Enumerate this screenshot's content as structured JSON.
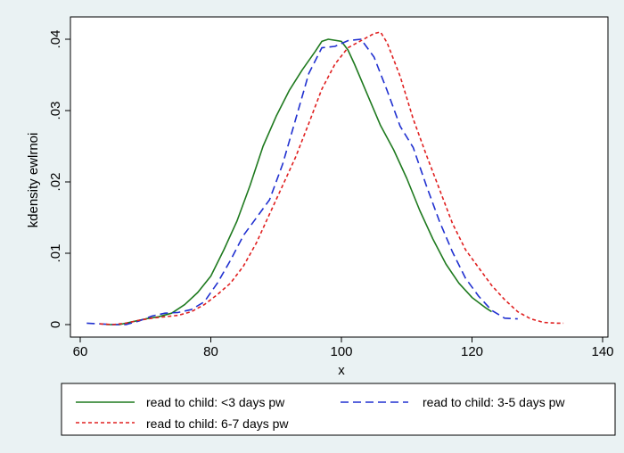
{
  "chart_data": {
    "type": "line",
    "title": "",
    "xlabel": "x",
    "ylabel": "kdensity ewlrnoi",
    "xlim": [
      60,
      140
    ],
    "ylim": [
      0,
      0.04
    ],
    "x_ticks": [
      "60",
      "80",
      "100",
      "120",
      "140"
    ],
    "y_ticks": [
      "0",
      ".01",
      ".02",
      ".03",
      ".04"
    ],
    "grid": false,
    "legend_position": "bottom",
    "series": [
      {
        "name": "read to child: <3 days pw",
        "color": "#1f7a1f",
        "style": "solid",
        "points": [
          [
            64,
            0
          ],
          [
            66,
            0
          ],
          [
            68,
            0.0004
          ],
          [
            70,
            0.0008
          ],
          [
            72,
            0.0011
          ],
          [
            74,
            0.0016
          ],
          [
            76,
            0.0028
          ],
          [
            78,
            0.0045
          ],
          [
            80,
            0.0068
          ],
          [
            82,
            0.0105
          ],
          [
            84,
            0.0145
          ],
          [
            86,
            0.0195
          ],
          [
            88,
            0.025
          ],
          [
            90,
            0.0292
          ],
          [
            92,
            0.0328
          ],
          [
            94,
            0.0357
          ],
          [
            96,
            0.0383
          ],
          [
            97,
            0.0397
          ],
          [
            98,
            0.04
          ],
          [
            100,
            0.0397
          ],
          [
            101,
            0.0385
          ],
          [
            102,
            0.0365
          ],
          [
            104,
            0.0322
          ],
          [
            106,
            0.0279
          ],
          [
            108,
            0.0245
          ],
          [
            110,
            0.0205
          ],
          [
            112,
            0.016
          ],
          [
            114,
            0.012
          ],
          [
            116,
            0.0085
          ],
          [
            118,
            0.0058
          ],
          [
            120,
            0.0038
          ],
          [
            122,
            0.0024
          ],
          [
            123,
            0.0018
          ]
        ]
      },
      {
        "name": "read to child: 3-5 days pw",
        "color": "#2030d0",
        "style": "dash",
        "points": [
          [
            61,
            0.0002
          ],
          [
            63,
            0.0001
          ],
          [
            65,
            0
          ],
          [
            67,
            0
          ],
          [
            69,
            0.0005
          ],
          [
            71,
            0.0012
          ],
          [
            73,
            0.0016
          ],
          [
            75,
            0.0017
          ],
          [
            77,
            0.0021
          ],
          [
            79,
            0.0032
          ],
          [
            81,
            0.0058
          ],
          [
            83,
            0.009
          ],
          [
            85,
            0.0125
          ],
          [
            87,
            0.015
          ],
          [
            89,
            0.0175
          ],
          [
            91,
            0.0225
          ],
          [
            93,
            0.0288
          ],
          [
            95,
            0.0352
          ],
          [
            97,
            0.0388
          ],
          [
            99,
            0.039
          ],
          [
            101,
            0.0398
          ],
          [
            103,
            0.04
          ],
          [
            105,
            0.0375
          ],
          [
            107,
            0.0328
          ],
          [
            109,
            0.0278
          ],
          [
            111,
            0.0248
          ],
          [
            113,
            0.0195
          ],
          [
            115,
            0.0145
          ],
          [
            117,
            0.0102
          ],
          [
            119,
            0.0065
          ],
          [
            121,
            0.004
          ],
          [
            123,
            0.002
          ],
          [
            125,
            0.0009
          ],
          [
            127,
            0.0008
          ]
        ]
      },
      {
        "name": "read to child: 6-7 days pw",
        "color": "#e02020",
        "style": "dot",
        "points": [
          [
            63,
            0.0001
          ],
          [
            65,
            0
          ],
          [
            67,
            0.0002
          ],
          [
            69,
            0.0006
          ],
          [
            71,
            0.0009
          ],
          [
            73,
            0.0011
          ],
          [
            75,
            0.0013
          ],
          [
            77,
            0.0018
          ],
          [
            79,
            0.0028
          ],
          [
            81,
            0.0042
          ],
          [
            83,
            0.0058
          ],
          [
            85,
            0.0082
          ],
          [
            87,
            0.0115
          ],
          [
            89,
            0.0155
          ],
          [
            91,
            0.0195
          ],
          [
            93,
            0.0235
          ],
          [
            95,
            0.0282
          ],
          [
            97,
            0.033
          ],
          [
            99,
            0.0365
          ],
          [
            101,
            0.0388
          ],
          [
            103,
            0.0398
          ],
          [
            105,
            0.0408
          ],
          [
            106,
            0.041
          ],
          [
            107,
            0.0395
          ],
          [
            109,
            0.0348
          ],
          [
            111,
            0.0288
          ],
          [
            113,
            0.0238
          ],
          [
            115,
            0.019
          ],
          [
            117,
            0.0142
          ],
          [
            119,
            0.0105
          ],
          [
            121,
            0.008
          ],
          [
            123,
            0.0055
          ],
          [
            125,
            0.0035
          ],
          [
            127,
            0.0018
          ],
          [
            129,
            0.0008
          ],
          [
            131,
            0.0003
          ],
          [
            133,
            0.0002
          ],
          [
            134,
            0.0002
          ]
        ]
      }
    ]
  }
}
